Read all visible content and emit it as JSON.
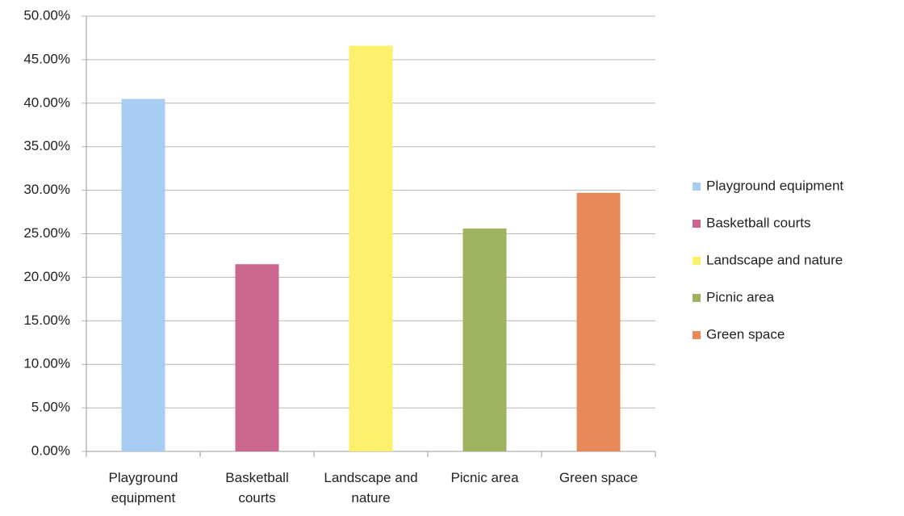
{
  "chart_data": {
    "type": "bar",
    "categories": [
      "Playground equipment",
      "Basketball courts",
      "Landscape and nature",
      "Picnic area",
      "Green space"
    ],
    "values": [
      40.5,
      21.5,
      46.6,
      25.6,
      29.7
    ],
    "colors": [
      "#a9cdf2",
      "#c9678e",
      "#fdf06a",
      "#9db35f",
      "#e8895a"
    ],
    "ylim": [
      0,
      50
    ],
    "yticks": [
      {
        "value": 0,
        "label": "0.00%"
      },
      {
        "value": 5,
        "label": "5.00%"
      },
      {
        "value": 10,
        "label": "10.00%"
      },
      {
        "value": 15,
        "label": "15.00%"
      },
      {
        "value": 20,
        "label": "20.00%"
      },
      {
        "value": 25,
        "label": "25.00%"
      },
      {
        "value": 30,
        "label": "30.00%"
      },
      {
        "value": 35,
        "label": "35.00%"
      },
      {
        "value": 40,
        "label": "40.00%"
      },
      {
        "value": 45,
        "label": "45.00%"
      },
      {
        "value": 50,
        "label": "50.00%"
      }
    ],
    "grid": true,
    "legend": "right"
  }
}
